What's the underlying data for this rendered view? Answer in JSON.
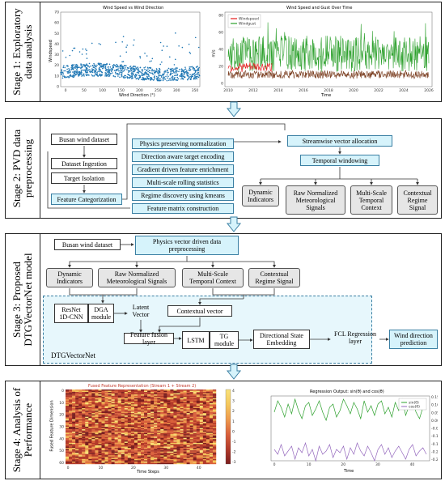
{
  "stage1": {
    "label": "Stage 1: Exploratory data analysis",
    "scatter": {
      "title": "Wind Speed vs Wind Direction",
      "xlabel": "Wind Direction (°)",
      "ylabel": "Windspeed",
      "xticks": [
        "0",
        "50",
        "100",
        "150",
        "200",
        "250",
        "300",
        "350"
      ],
      "yticks": [
        "0",
        "10",
        "20",
        "30",
        "40",
        "50",
        "60",
        "70"
      ],
      "color": "#1f77b4"
    },
    "timeseries": {
      "title": "Wind Speed and Gust Over Time",
      "xlabel": "Time",
      "ylabel": "m/s",
      "xticks": [
        "2010",
        "2012",
        "2014",
        "2016",
        "2018",
        "2020",
        "2022",
        "2024",
        "2026"
      ],
      "yticks": [
        "0",
        "20",
        "40",
        "60",
        "80"
      ],
      "legend": [
        "Windspeed",
        "Windgust"
      ],
      "colors": [
        "#e41a1c",
        "#2ca02c"
      ]
    }
  },
  "stage2": {
    "label": "Stage 2: PVD data preprocessing",
    "left": [
      "Busan wind dataset",
      "Dataset Ingestion",
      "Target Isolation",
      "Feature Categorization"
    ],
    "middle": [
      "Physics preserving normalization",
      "Direction aware target encoding",
      "Gradient driven feature enrichment",
      "Multi-scale rolling statistics",
      "Regime discovery using  kmeans",
      "Feature matrix construction"
    ],
    "right_top": "Streamwise vector allocation",
    "right_mid": "Temporal windowing",
    "outputs": [
      "Dynamic Indicators",
      "Raw Normalized Meteorological Signals",
      "Multi-Scale Temporal Context",
      "Contextual Regime Signal"
    ]
  },
  "stage3": {
    "label": "Stage 3: Proposed DTGVectorNet  model",
    "dataset": "Busan wind dataset",
    "pvd": "Physics vector driven data preprocessing",
    "inputs": [
      "Dynamic Indicators",
      "Raw Normalized Meteorological Signals",
      "Multi-Scale Temporal Context",
      "Contextual Regime Signal"
    ],
    "resnet": "ResNet 1D-CNN",
    "dga": "DGA module",
    "latent": "Latent Vector",
    "contextual_vector": "Contextual vector",
    "fusion": "Feature fusion layer",
    "lstm": "LSTM",
    "tg": "TG module",
    "dse": "Directional State Embedding",
    "fcl": "FCL Regression layer",
    "output": "Wind direction prediction",
    "net_label": "DTGVectorNet"
  },
  "stage4": {
    "label": "Stage 4: Analysis of Performance",
    "heatmap": {
      "title": "Fused Feature Representation (Stream 1 + Stream 2)",
      "xlabel": "Time Steps",
      "ylabel": "Fused Feature Dimension",
      "xticks": [
        "0",
        "10",
        "20",
        "30",
        "40"
      ],
      "yticks": [
        "0",
        "10",
        "20",
        "30",
        "40",
        "50",
        "60"
      ],
      "cbar_ticks": [
        "4",
        "3",
        "2",
        "1",
        "0",
        "-1",
        "-2",
        "-3"
      ]
    },
    "regression": {
      "title": "Regression Output: sin(θ) and cos(θ)",
      "xlabel": "Time",
      "ylabel": "Normalized Magnitude",
      "xticks": [
        "0",
        "10",
        "20",
        "30",
        "40"
      ],
      "yticks": [
        "0.15",
        "0.10",
        "0.05",
        "0.00",
        "-0.05",
        "-0.10",
        "-0.15",
        "-0.20",
        "-0.25"
      ],
      "legend": [
        "sin(θ)",
        "cos(θ)"
      ],
      "colors": [
        "#2ca02c",
        "#9467bd"
      ]
    }
  }
}
